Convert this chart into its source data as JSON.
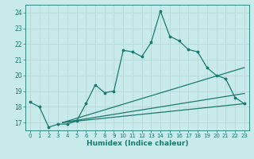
{
  "xlabel": "Humidex (Indice chaleur)",
  "xlim": [
    -0.5,
    23.5
  ],
  "ylim": [
    16.5,
    24.5
  ],
  "yticks": [
    17,
    18,
    19,
    20,
    21,
    22,
    23,
    24
  ],
  "xticks": [
    0,
    1,
    2,
    3,
    4,
    5,
    6,
    7,
    8,
    9,
    10,
    11,
    12,
    13,
    14,
    15,
    16,
    17,
    18,
    19,
    20,
    21,
    22,
    23
  ],
  "bg_color": "#c9eaea",
  "line_color": "#1a7a6e",
  "grid_color": "#b8d8d8",
  "main_line": {
    "x": [
      0,
      1,
      2,
      3,
      4,
      5,
      6,
      7,
      8,
      9,
      10,
      11,
      12,
      13,
      14,
      15,
      16,
      17,
      18,
      19,
      20,
      21,
      22,
      23
    ],
    "y": [
      18.3,
      18.0,
      16.7,
      16.9,
      16.9,
      17.1,
      18.2,
      19.4,
      18.9,
      19.0,
      21.6,
      21.5,
      21.2,
      22.1,
      24.1,
      22.5,
      22.2,
      21.65,
      21.5,
      20.5,
      20.0,
      19.8,
      18.6,
      18.2
    ]
  },
  "line2": {
    "x": [
      3.5,
      23
    ],
    "y": [
      17.0,
      18.2
    ]
  },
  "line3": {
    "x": [
      3.5,
      23
    ],
    "y": [
      17.0,
      18.85
    ]
  },
  "line4": {
    "x": [
      3.5,
      23
    ],
    "y": [
      17.0,
      20.5
    ]
  }
}
